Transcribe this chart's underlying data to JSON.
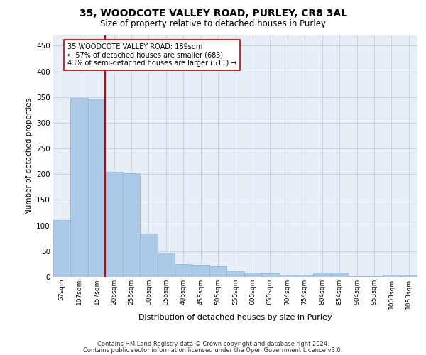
{
  "title_line1": "35, WOODCOTE VALLEY ROAD, PURLEY, CR8 3AL",
  "title_line2": "Size of property relative to detached houses in Purley",
  "xlabel": "Distribution of detached houses by size in Purley",
  "ylabel": "Number of detached properties",
  "footnote1": "Contains HM Land Registry data © Crown copyright and database right 2024.",
  "footnote2": "Contains public sector information licensed under the Open Government Licence v3.0.",
  "bar_labels": [
    "57sqm",
    "107sqm",
    "157sqm",
    "206sqm",
    "256sqm",
    "306sqm",
    "356sqm",
    "406sqm",
    "455sqm",
    "505sqm",
    "555sqm",
    "605sqm",
    "655sqm",
    "704sqm",
    "754sqm",
    "804sqm",
    "854sqm",
    "904sqm",
    "953sqm",
    "1003sqm",
    "1053sqm"
  ],
  "bar_values": [
    110,
    348,
    345,
    204,
    202,
    84,
    47,
    25,
    24,
    21,
    11,
    8,
    7,
    4,
    4,
    8,
    8,
    2,
    1,
    4,
    3
  ],
  "bar_color": "#adc9e8",
  "bar_edge_color": "#88b4d4",
  "grid_color": "#c8d4e4",
  "background_color": "#e8eef6",
  "vline_color": "#cc0000",
  "vline_x": 2.5,
  "annotation_line0": "35 WOODCOTE VALLEY ROAD: 189sqm",
  "annotation_line1": "← 57% of detached houses are smaller (683)",
  "annotation_line2": "43% of semi-detached houses are larger (511) →",
  "ylim": [
    0,
    470
  ],
  "yticks": [
    0,
    50,
    100,
    150,
    200,
    250,
    300,
    350,
    400,
    450
  ]
}
